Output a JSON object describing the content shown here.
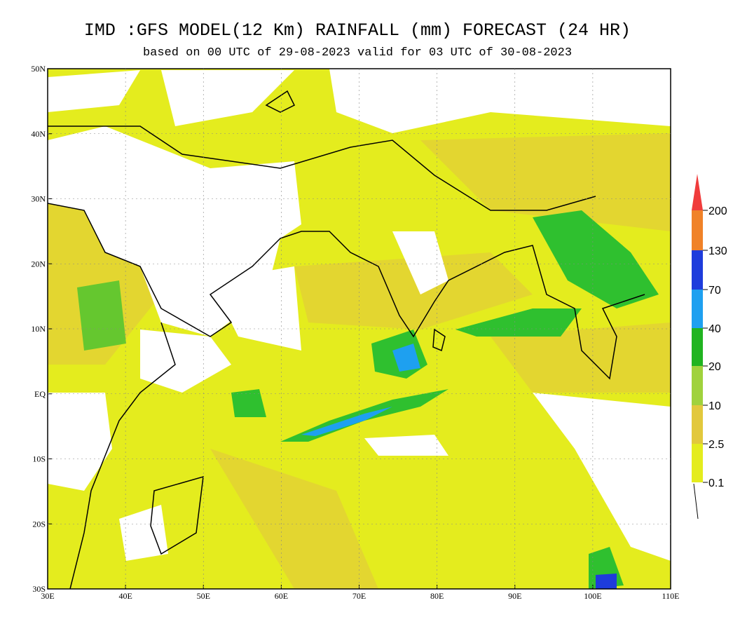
{
  "title": "IMD :GFS MODEL(12 Km) RAINFALL (mm) FORECAST (24 HR)",
  "subtitle": "based on 00 UTC of 29-08-2023 valid for 03 UTC of 30-08-2023",
  "lat_labels": [
    "50N",
    "40N",
    "30N",
    "20N",
    "10N",
    "EQ",
    "10S",
    "20S",
    "30S"
  ],
  "lon_labels": [
    "30E",
    "40E",
    "50E",
    "60E",
    "70E",
    "80E",
    "90E",
    "100E",
    "110E"
  ],
  "legend_labels": [
    "200",
    "130",
    "70",
    "40",
    "20",
    "10",
    "2.5",
    "0.1"
  ]
}
